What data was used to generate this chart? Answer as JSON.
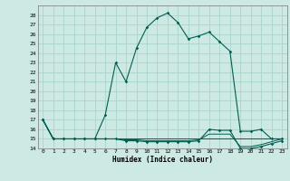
{
  "title": "",
  "xlabel": "Humidex (Indice chaleur)",
  "background_color": "#cce9e4",
  "grid_color": "#aad4cc",
  "line_color": "#005f52",
  "xlim": [
    -0.5,
    23.5
  ],
  "ylim": [
    14,
    29
  ],
  "yticks": [
    14,
    15,
    16,
    17,
    18,
    19,
    20,
    21,
    22,
    23,
    24,
    25,
    26,
    27,
    28
  ],
  "xticks": [
    0,
    1,
    2,
    3,
    4,
    5,
    6,
    7,
    8,
    9,
    10,
    11,
    12,
    13,
    14,
    15,
    16,
    17,
    18,
    19,
    20,
    21,
    22,
    23
  ],
  "series": [
    [
      17,
      15,
      15,
      15,
      15,
      15,
      17.5,
      23,
      21,
      24.5,
      26.7,
      27.7,
      28.2,
      27.2,
      25.5,
      25.8,
      26.2,
      25.2,
      24.2,
      15.8,
      15.8,
      16.0,
      15.0,
      15.0
    ],
    [
      17,
      15,
      15,
      15,
      15,
      15,
      15.0,
      15.0,
      14.8,
      14.8,
      14.7,
      14.7,
      14.7,
      14.7,
      14.7,
      14.8,
      16.0,
      15.9,
      15.9,
      14.0,
      14.0,
      14.2,
      14.5,
      14.8
    ],
    [
      17,
      15,
      15,
      15,
      15,
      15,
      15.0,
      15.0,
      15.0,
      15.0,
      15.0,
      15.0,
      15.0,
      15.0,
      15.0,
      15.0,
      15.0,
      15.0,
      15.0,
      15.0,
      15.0,
      15.0,
      15.0,
      15.0
    ],
    [
      17,
      15,
      15,
      15,
      15,
      15,
      15.0,
      15.0,
      14.9,
      14.9,
      14.8,
      14.8,
      14.8,
      14.8,
      14.8,
      14.9,
      15.5,
      15.5,
      15.5,
      14.2,
      14.2,
      14.4,
      14.7,
      15.0
    ]
  ],
  "has_markers": [
    true,
    true,
    false,
    false
  ],
  "figsize": [
    3.2,
    2.0
  ],
  "dpi": 100
}
